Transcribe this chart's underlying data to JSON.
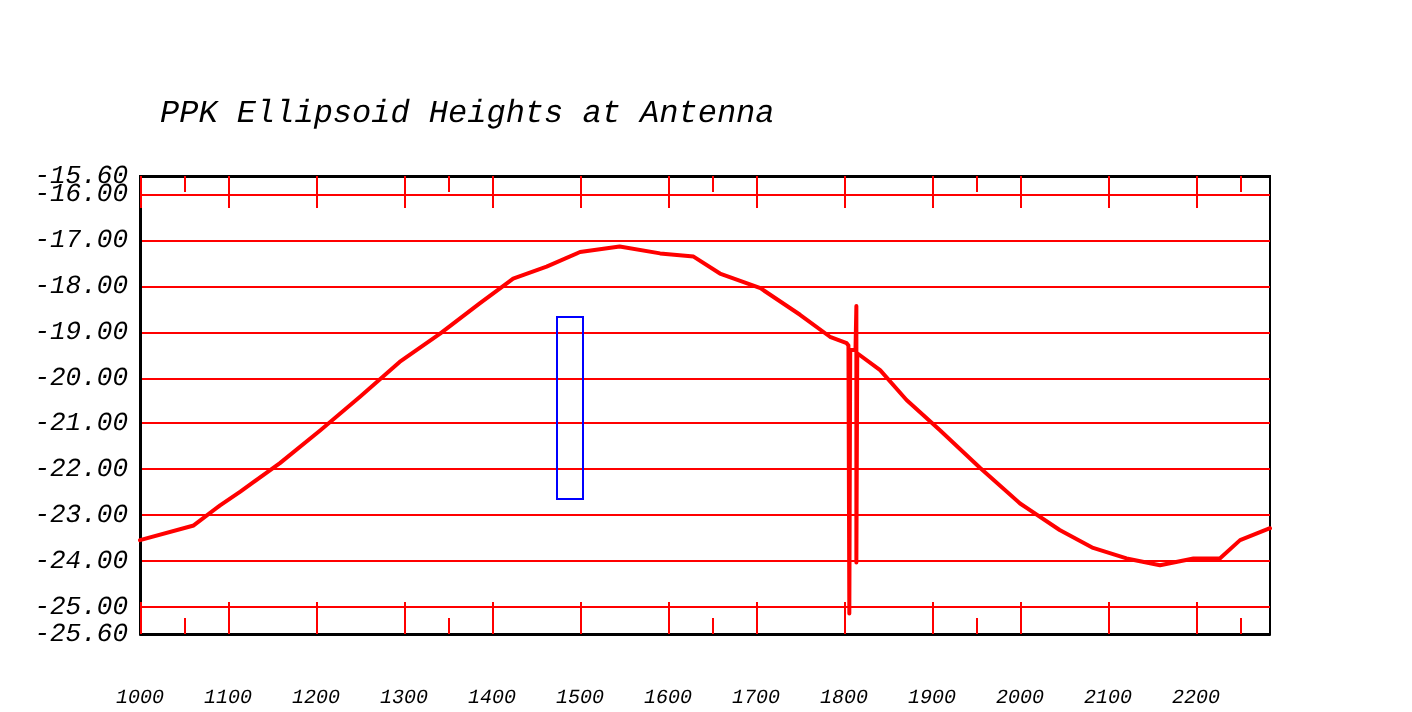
{
  "chart_data": {
    "type": "line",
    "title": "PPK Ellipsoid Heights at Antenna",
    "x": [
      1000,
      1061,
      1091,
      1114,
      1159,
      1205,
      1250,
      1295,
      1341,
      1386,
      1424,
      1462,
      1500,
      1545,
      1591,
      1629,
      1659,
      1705,
      1750,
      1784,
      1803,
      1805,
      1806,
      1807,
      1813,
      1814,
      1814,
      1815,
      1841,
      1871,
      1909,
      1955,
      2000,
      2045,
      2083,
      2121,
      2159,
      2197,
      2227,
      2250,
      2284
    ],
    "series": [
      {
        "color": "#ff0000",
        "values": [
          -23.55,
          -23.23,
          -22.79,
          -22.49,
          -21.87,
          -21.15,
          -20.42,
          -19.66,
          -19.04,
          -18.38,
          -17.84,
          -17.58,
          -17.26,
          -17.14,
          -17.29,
          -17.36,
          -17.73,
          -18.05,
          -18.63,
          -19.11,
          -19.25,
          -19.3,
          -25.15,
          -19.4,
          -19.4,
          -18.44,
          -24.04,
          -19.47,
          -19.84,
          -20.49,
          -21.15,
          -21.98,
          -22.75,
          -23.33,
          -23.72,
          -23.95,
          -24.1,
          -23.95,
          -23.95,
          -23.55,
          -23.29
        ]
      }
    ],
    "xlim": [
      1000,
      2284
    ],
    "xticks": [
      1000,
      1100,
      1200,
      1300,
      1400,
      1500,
      1600,
      1700,
      1800,
      1900,
      2000,
      2100,
      2200
    ],
    "ylim": [
      -25.6,
      -15.6
    ],
    "yticks": [
      {
        "value": -15.6,
        "label": "-15.60"
      },
      {
        "value": -16,
        "label": "-16.00"
      },
      {
        "value": -17,
        "label": "-17.00"
      },
      {
        "value": -18,
        "label": "-18.00"
      },
      {
        "value": -19,
        "label": "-19.00"
      },
      {
        "value": -20,
        "label": "-20.00"
      },
      {
        "value": -21,
        "label": "-21.00"
      },
      {
        "value": -22,
        "label": "-22.00"
      },
      {
        "value": -23,
        "label": "-23.00"
      },
      {
        "value": -24,
        "label": "-24.00"
      },
      {
        "value": -25,
        "label": "-25.00"
      },
      {
        "value": -25.6,
        "label": "-25.60"
      }
    ],
    "grid": "y",
    "marker": "none",
    "line_style": "solid"
  }
}
